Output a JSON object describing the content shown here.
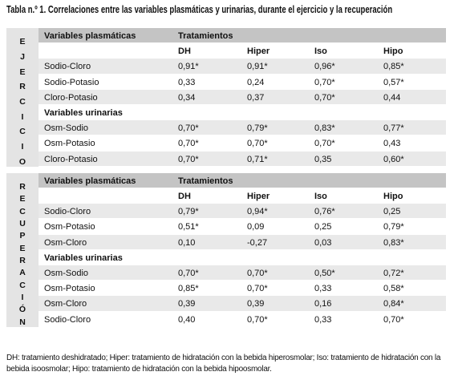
{
  "title": "Tabla n.º 1. Correlaciones entre las variables plasmáticas y urinarias, durante el ejercicio y la recuperación",
  "sections": [
    {
      "label": "EJERCICIO",
      "header": {
        "variables": "Variables plasmáticas",
        "treatments": "Tratamientos"
      },
      "columns": [
        "DH",
        "Hiper",
        "Iso",
        "Hipo"
      ],
      "groups": [
        {
          "rows": [
            [
              "Sodio-Cloro",
              "0,91*",
              "0,91*",
              "0,96*",
              "0,85*"
            ],
            [
              "Sodio-Potasio",
              "0,33",
              "0,24",
              "0,70*",
              "0,57*"
            ],
            [
              "Cloro-Potasio",
              "0,34",
              "0,37",
              "0,70*",
              "0,44"
            ]
          ]
        },
        {
          "title": "Variables urinarias",
          "rows": [
            [
              "Osm-Sodio",
              "0,70*",
              "0,79*",
              "0,83*",
              "0,77*"
            ],
            [
              "Osm-Potasio",
              "0,70*",
              "0,70*",
              "0,70*",
              "0,43"
            ],
            [
              "Cloro-Potasio",
              "0,70*",
              "0,71*",
              "0,35",
              "0,60*"
            ]
          ]
        }
      ]
    },
    {
      "label": "RECUPERACIÓN",
      "header": {
        "variables": "Variables plasmáticas",
        "treatments": "Tratamientos"
      },
      "columns": [
        "DH",
        "Hiper",
        "Iso",
        "Hipo"
      ],
      "groups": [
        {
          "rows": [
            [
              "Sodio-Cloro",
              "0,79*",
              "0,94*",
              "0,76*",
              "0,25"
            ],
            [
              "Osm-Potasio",
              "0,51*",
              "0,09",
              "0,25",
              "0,79*"
            ],
            [
              "Osm-Cloro",
              "0,10",
              "-0,27",
              "0,03",
              "0,83*"
            ]
          ]
        },
        {
          "title": "Variables urinarias",
          "rows": [
            [
              "Osm-Sodio",
              "0,70*",
              "0,70*",
              "0,50*",
              "0,72*"
            ],
            [
              "Osm-Potasio",
              "0,85*",
              "0,70*",
              "0,33",
              "0,58*"
            ],
            [
              "Osm-Cloro",
              "0,39",
              "0,39",
              "0,16",
              "0,84*"
            ],
            [
              "Sodio-Cloro",
              "0,40",
              "0,70*",
              "0,33",
              "0,70*"
            ]
          ]
        }
      ]
    }
  ],
  "footnote": "DH: tratamiento deshidratado; Hiper: tratamiento de hidratación con la bebida hiperosmolar; Iso: tratamiento de hidratación con la bebida isoosmolar; Hipo: tratamiento de hidratación con la bebida hipoosmolar."
}
